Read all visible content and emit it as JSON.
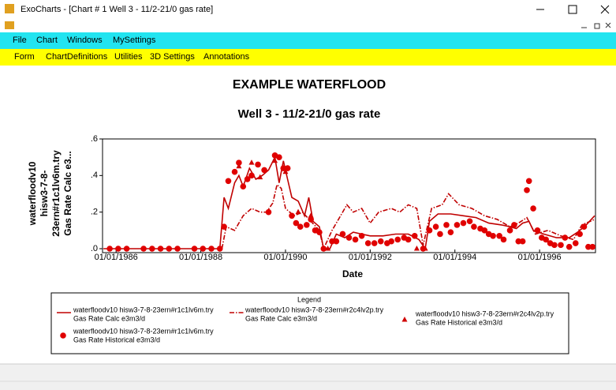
{
  "window": {
    "title": "ExoCharts - [Chart # 1 Well  3 - 11/2-21/0  gas rate]"
  },
  "menu": [
    "File",
    "Chart",
    "Windows",
    "MySettings"
  ],
  "toolbar": [
    "Form",
    "ChartDefinitions",
    "Utilities",
    "3D Settings",
    "Annotations"
  ],
  "chart_data": {
    "type": "line",
    "title": "EXAMPLE WATERFLOOD",
    "subtitle": "Well  3 - 11/2-21/0  gas rate",
    "x_label": "Date",
    "y_label": [
      "waterfloodv10",
      "hisw3-7-8-",
      "23ern#r1c1lv6m.try",
      "Gas Rate Calc  e3..."
    ],
    "legend_title": "Legend",
    "xlim": [
      1985.68,
      1997.32
    ],
    "xticks": [
      {
        "value": 1986,
        "label": "01/01/1986"
      },
      {
        "value": 1988,
        "label": "01/01/1988"
      },
      {
        "value": 1990,
        "label": "01/01/1990"
      },
      {
        "value": 1992,
        "label": "01/01/1992"
      },
      {
        "value": 1994,
        "label": "01/01/1994"
      },
      {
        "value": 1996,
        "label": "01/01/1996"
      }
    ],
    "ylim": [
      0,
      0.6
    ],
    "yticks": [
      {
        "value": 0,
        "label": ".0"
      },
      {
        "value": 0.2,
        "label": ".2"
      },
      {
        "value": 0.4,
        "label": ".4"
      },
      {
        "value": 0.6,
        "label": ".6"
      }
    ],
    "series": [
      {
        "name": "waterfloodv10  hisw3-7-8-23ern#r1c1lv6m.try",
        "quantity": "Gas Rate Calc  e3m3/d",
        "style": "solid",
        "color": "#c00000",
        "x": [
          1985.7,
          1988.45,
          1988.55,
          1988.65,
          1988.8,
          1988.9,
          1989.0,
          1989.15,
          1989.3,
          1989.45,
          1989.6,
          1989.75,
          1989.85,
          1989.95,
          1990.05,
          1990.15,
          1990.3,
          1990.45,
          1990.55,
          1990.65,
          1990.8,
          1990.9,
          1991.05,
          1991.2,
          1991.4,
          1991.6,
          1991.8,
          1992.0,
          1992.3,
          1992.6,
          1992.9,
          1993.15,
          1993.3,
          1993.4,
          1993.6,
          1993.9,
          1994.2,
          1994.5,
          1994.8,
          1995.1,
          1995.3,
          1995.45,
          1995.6,
          1995.75,
          1995.85,
          1996.1,
          1996.4,
          1996.7,
          1996.9,
          1997.1,
          1997.3
        ],
        "values": [
          0,
          0,
          0.28,
          0.22,
          0.36,
          0.4,
          0.34,
          0.44,
          0.38,
          0.4,
          0.43,
          0.5,
          0.36,
          0.48,
          0.38,
          0.28,
          0.26,
          0.18,
          0.28,
          0.15,
          0.12,
          0,
          0,
          0.08,
          0.06,
          0.09,
          0.08,
          0.07,
          0.07,
          0.08,
          0.08,
          0.05,
          0,
          0.15,
          0.19,
          0.19,
          0.18,
          0.17,
          0.14,
          0.13,
          0.12,
          0.11,
          0.14,
          0.15,
          0.1,
          0.08,
          0.06,
          0.06,
          0.09,
          0.13,
          0.18
        ]
      },
      {
        "name": "waterfloodv10  hisw3-7-8-23ern#r2c4lv2p.try",
        "quantity": "Gas Rate Calc  e3m3/d",
        "style": "dashdot",
        "color": "#c00000",
        "x": [
          1988.5,
          1988.6,
          1988.8,
          1989.0,
          1989.2,
          1989.4,
          1989.55,
          1989.7,
          1989.8,
          1989.9,
          1990.0,
          1990.2,
          1990.4,
          1990.6,
          1990.8,
          1990.9,
          1991.1,
          1991.3,
          1991.45,
          1991.6,
          1991.8,
          1992.0,
          1992.2,
          1992.5,
          1992.7,
          1992.9,
          1993.1,
          1993.25,
          1993.45,
          1993.7,
          1993.85,
          1994.1,
          1994.4,
          1994.7,
          1995.0,
          1995.3,
          1995.5,
          1995.7,
          1995.9,
          1996.2,
          1996.5,
          1996.8,
          1997.0,
          1997.3
        ],
        "values": [
          0,
          0.12,
          0.1,
          0.18,
          0.22,
          0.2,
          0.2,
          0.25,
          0.35,
          0.33,
          0.22,
          0.18,
          0.2,
          0.15,
          0.1,
          0,
          0.1,
          0.18,
          0.24,
          0.2,
          0.22,
          0.14,
          0.2,
          0.22,
          0.2,
          0.24,
          0.22,
          0.02,
          0.22,
          0.24,
          0.3,
          0.24,
          0.22,
          0.18,
          0.16,
          0.12,
          0.14,
          0.17,
          0.08,
          0.1,
          0.07,
          0.05,
          0.13,
          0.16
        ]
      },
      {
        "name": "waterfloodv10  hisw3-7-8-23ern#r2c4lv2p.try",
        "quantity": "Gas Rate Historical  e3m3/d",
        "style": "triangle",
        "color": "#d00000",
        "x": [
          1988.9,
          1989.2,
          1989.4,
          1989.75,
          1990.0,
          1990.3,
          1990.6,
          1991.0,
          1993.1,
          1993.3
        ],
        "values": [
          0.45,
          0.47,
          0.39,
          0.48,
          0.42,
          0.2,
          0.18,
          0,
          0,
          0
        ]
      },
      {
        "name": "waterfloodv10  hisw3-7-8-23ern#r1c1lv6m.try",
        "quantity": "Gas Rate Historical  e3m3/d",
        "style": "circle",
        "color": "#e00000",
        "x": [
          1985.85,
          1986.05,
          1986.25,
          1986.65,
          1986.85,
          1987.05,
          1987.25,
          1987.45,
          1987.85,
          1988.05,
          1988.25,
          1988.45,
          1988.55,
          1988.65,
          1988.8,
          1988.9,
          1989.0,
          1989.1,
          1989.2,
          1989.35,
          1989.5,
          1989.6,
          1989.75,
          1989.85,
          1989.95,
          1990.05,
          1990.15,
          1990.25,
          1990.35,
          1990.5,
          1990.6,
          1990.7,
          1990.8,
          1990.9,
          1991.1,
          1991.2,
          1991.35,
          1991.5,
          1991.65,
          1991.8,
          1991.95,
          1992.1,
          1992.25,
          1992.4,
          1992.5,
          1992.65,
          1992.8,
          1992.9,
          1993.05,
          1993.25,
          1993.4,
          1993.55,
          1993.65,
          1993.8,
          1993.9,
          1994.05,
          1994.2,
          1994.35,
          1994.45,
          1994.6,
          1994.7,
          1994.8,
          1994.9,
          1995.05,
          1995.15,
          1995.3,
          1995.4,
          1995.5,
          1995.6,
          1995.7,
          1995.75,
          1995.85,
          1995.95,
          1996.05,
          1996.15,
          1996.25,
          1996.35,
          1996.5,
          1996.6,
          1996.7,
          1996.85,
          1996.95,
          1997.05,
          1997.15,
          1997.25
        ],
        "values": [
          0,
          0,
          0,
          0,
          0,
          0,
          0,
          0,
          0,
          0,
          0,
          0,
          0.12,
          0.37,
          0.42,
          0.47,
          0.34,
          0.38,
          0.4,
          0.46,
          0.43,
          0.2,
          0.51,
          0.5,
          0.44,
          0.44,
          0.18,
          0.14,
          0.12,
          0.13,
          0.16,
          0.1,
          0.09,
          0,
          0.04,
          0.04,
          0.08,
          0.06,
          0.05,
          0.07,
          0.03,
          0.03,
          0.04,
          0.03,
          0.04,
          0.05,
          0.06,
          0.05,
          0.07,
          0,
          0.1,
          0.12,
          0.08,
          0.13,
          0.09,
          0.13,
          0.14,
          0.15,
          0.12,
          0.11,
          0.1,
          0.08,
          0.07,
          0.07,
          0.05,
          0.1,
          0.13,
          0.04,
          0.04,
          0.32,
          0.37,
          0.22,
          0.1,
          0.06,
          0.05,
          0.03,
          0.02,
          0.02,
          0.06,
          0.01,
          0.03,
          0.08,
          0.12,
          0.01,
          0.01
        ]
      }
    ]
  }
}
